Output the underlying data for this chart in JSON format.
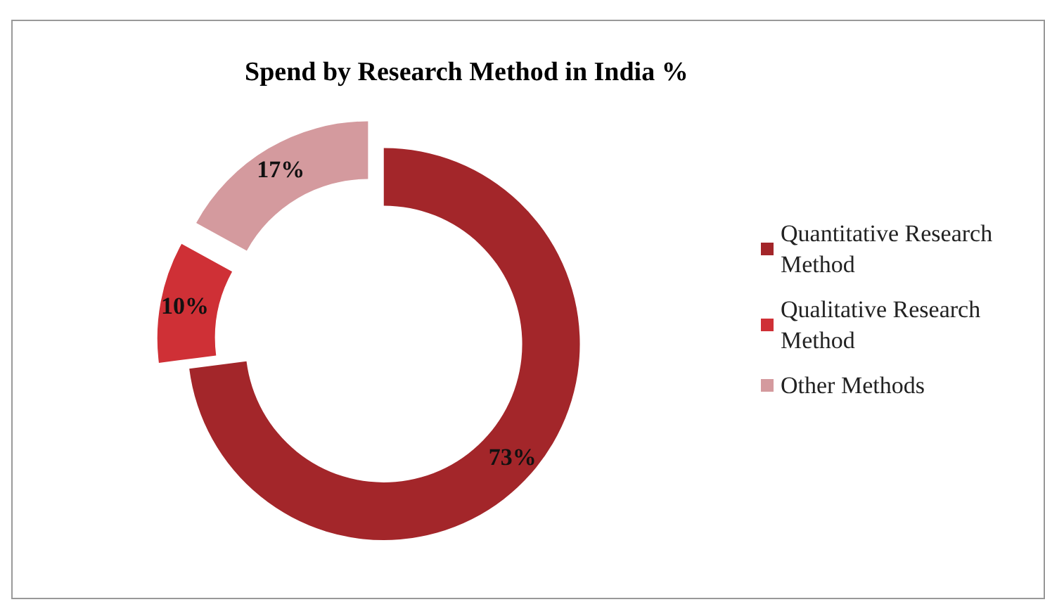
{
  "chart_data": {
    "type": "donut",
    "title": "Spend by Research Method in India %",
    "categories": [
      "Quantitative Research Method",
      "Qualitative Research Method",
      "Other Methods"
    ],
    "values": [
      73,
      10,
      17
    ],
    "colors": [
      "#a3262a",
      "#cf3036",
      "#d49a9e"
    ],
    "value_labels": [
      "73%",
      "10%",
      "17%"
    ],
    "legend": "right"
  }
}
